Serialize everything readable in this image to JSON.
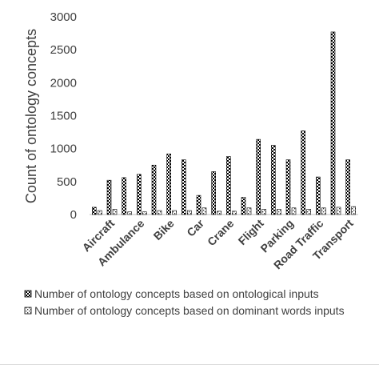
{
  "chart_data": {
    "type": "bar",
    "title": "",
    "xlabel": "",
    "ylabel": "Count of ontology concepts",
    "ylim": [
      0,
      3000
    ],
    "yticks": [
      0,
      500,
      1000,
      1500,
      2000,
      2500,
      3000
    ],
    "grid": false,
    "legend_position": "bottom",
    "visible_labels": [
      "Aircraft",
      "Ambulance",
      "Bike",
      "Car",
      "Crane",
      "Flight",
      "Parking",
      "Road Traffic",
      "Transport"
    ],
    "visible_label_slots": [
      1,
      3,
      5,
      7,
      9,
      11,
      13,
      15,
      17
    ],
    "slot_count": 18,
    "series": [
      {
        "name": "Number of ontology concepts based on ontological inputs",
        "pattern": "checker",
        "values": [
          110,
          520,
          560,
          610,
          750,
          920,
          830,
          290,
          650,
          880,
          260,
          1140,
          1050,
          830,
          1270,
          570,
          2770,
          830
        ]
      },
      {
        "name": "Number of ontology concepts based on dominant words inputs",
        "pattern": "dots",
        "values": [
          60,
          80,
          40,
          40,
          60,
          60,
          60,
          100,
          50,
          50,
          100,
          80,
          80,
          100,
          80,
          100,
          110,
          120
        ]
      }
    ]
  }
}
